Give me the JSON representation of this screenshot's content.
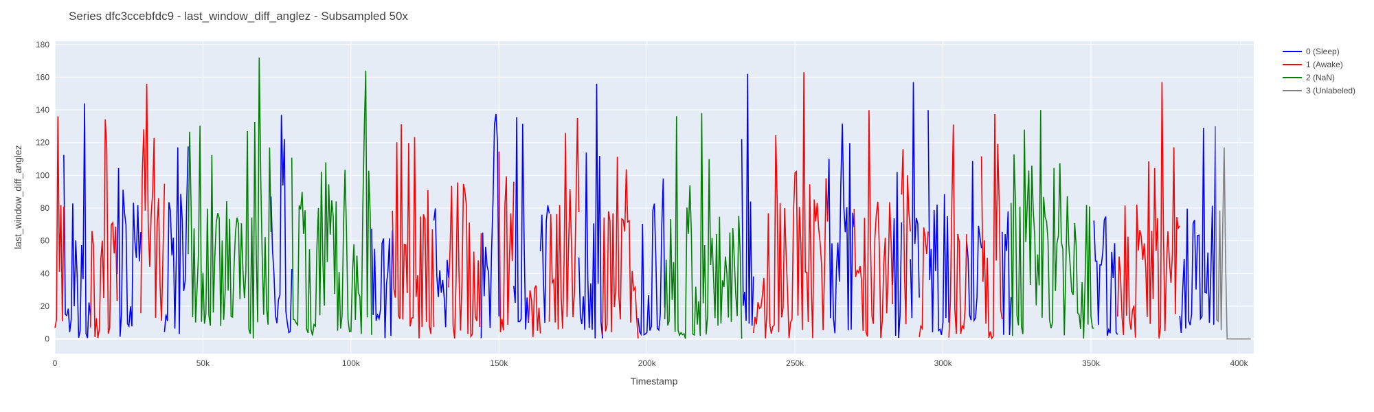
{
  "chart_data": {
    "type": "line",
    "title": "Series dfc3ccebfdc9 - last_window_diff_anglez - Subsampled 50x",
    "xlabel": "Timestamp",
    "ylabel": "last_window_diff_anglez",
    "xlim": [
      0,
      405000
    ],
    "ylim": [
      -9,
      182
    ],
    "x_ticks": [
      0,
      50000,
      100000,
      150000,
      200000,
      250000,
      300000,
      350000,
      400000
    ],
    "x_tick_labels": [
      "0",
      "50k",
      "100k",
      "150k",
      "200k",
      "250k",
      "300k",
      "350k",
      "400k"
    ],
    "y_ticks": [
      0,
      20,
      40,
      60,
      80,
      100,
      120,
      140,
      160,
      180
    ],
    "y_tick_labels": [
      "0",
      "20",
      "40",
      "60",
      "80",
      "100",
      "120",
      "140",
      "160",
      "180"
    ],
    "grid": true,
    "legend_position": "top-right",
    "sample_step": 50,
    "series": [
      {
        "name": "0 (Sleep)",
        "color": "#0000ff",
        "segments": [
          [
            3000,
            12000
          ],
          [
            21000,
            29000
          ],
          [
            37000,
            45000
          ],
          [
            73000,
            80000
          ],
          [
            107000,
            114000
          ],
          [
            128000,
            133000
          ],
          [
            144000,
            150000
          ],
          [
            155000,
            160000
          ],
          [
            164000,
            167000
          ],
          [
            177000,
            185000
          ],
          [
            197000,
            206000
          ],
          [
            232000,
            236000
          ],
          [
            261000,
            270000
          ],
          [
            283000,
            286000
          ],
          [
            289000,
            292000
          ],
          [
            295000,
            302000
          ],
          [
            308000,
            313000
          ],
          [
            320000,
            323000
          ],
          [
            351000,
            359000
          ],
          [
            380000,
            392000
          ]
        ]
      },
      {
        "name": "1 (Awake)",
        "color": "#ff0000",
        "segments": [
          [
            0,
            3000
          ],
          [
            12000,
            21000
          ],
          [
            29000,
            37000
          ],
          [
            114000,
            128000
          ],
          [
            133000,
            144000
          ],
          [
            150000,
            155000
          ],
          [
            160000,
            164000
          ],
          [
            167000,
            177000
          ],
          [
            185000,
            197000
          ],
          [
            236000,
            261000
          ],
          [
            270000,
            283000
          ],
          [
            286000,
            289000
          ],
          [
            292000,
            295000
          ],
          [
            302000,
            308000
          ],
          [
            313000,
            320000
          ],
          [
            359000,
            380000
          ]
        ]
      },
      {
        "name": "2 (NaN)",
        "color": "#008000",
        "segments": [
          [
            45000,
            73000
          ],
          [
            80000,
            107000
          ],
          [
            206000,
            232000
          ],
          [
            323000,
            351000
          ]
        ]
      },
      {
        "name": "3 (Unlabeled)",
        "color": "#808080",
        "segments": [
          [
            392000,
            404000
          ]
        ]
      }
    ],
    "peaks": [
      {
        "x": 69000,
        "y": 172
      },
      {
        "x": 105000,
        "y": 164
      },
      {
        "x": 234000,
        "y": 162
      },
      {
        "x": 253000,
        "y": 163
      },
      {
        "x": 374000,
        "y": 157
      },
      {
        "x": 31000,
        "y": 156
      },
      {
        "x": 183000,
        "y": 156
      },
      {
        "x": 290000,
        "y": 157
      },
      {
        "x": 1000,
        "y": 136
      },
      {
        "x": 10000,
        "y": 144
      },
      {
        "x": 392000,
        "y": 130
      },
      {
        "x": 395000,
        "y": 117
      }
    ]
  }
}
